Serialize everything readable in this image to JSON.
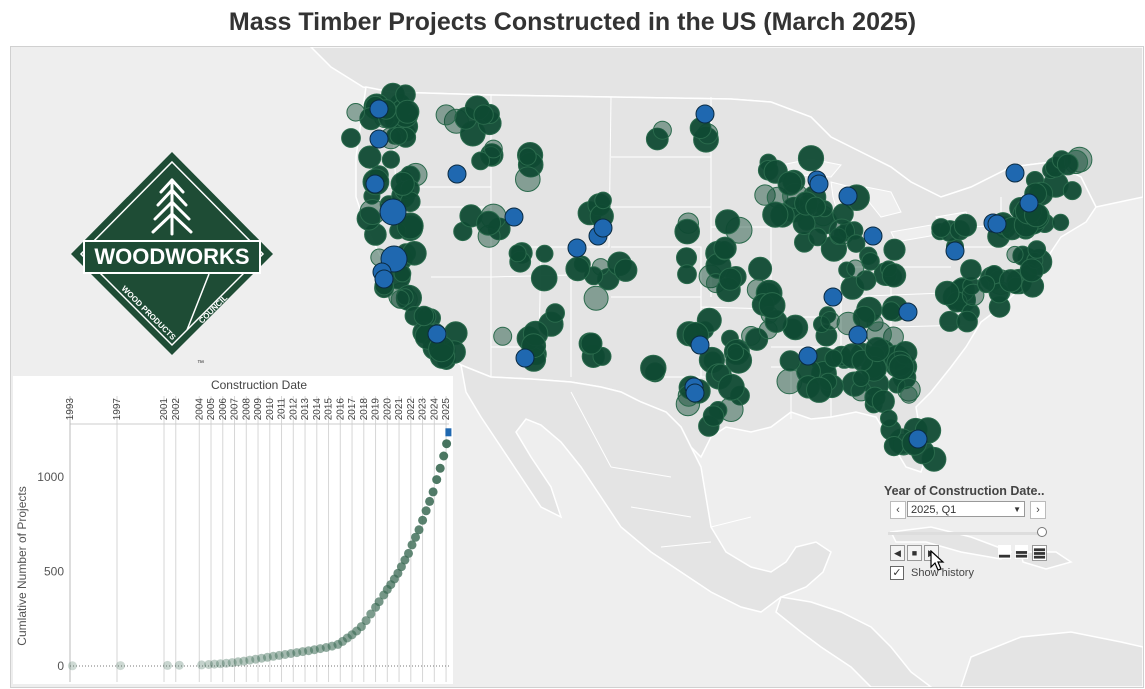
{
  "title": "Mass Timber Projects Constructed in the US (March 2025)",
  "colors": {
    "map_background": "#eeeeee",
    "land": "#e4e4e4",
    "land_border": "#ffffff",
    "project_built": "#0f4a33",
    "project_new": "#1f68b0",
    "logo_green": "#1e4c35"
  },
  "logo": {
    "wordmark": "WOODWORKS",
    "left_banner": "WOOD PRODUCTS",
    "right_banner": "COUNCIL",
    "trademark": "™",
    "icon": "tree-icon"
  },
  "controls": {
    "title": "Year of Construction Date..",
    "selected_period": "2025, Q1",
    "prev_icon": "chevron-left-icon",
    "next_icon": "chevron-right-icon",
    "dropdown_icon": "caret-down-icon",
    "play_icons": [
      "step-back-icon",
      "stop-icon",
      "play-icon"
    ],
    "speed_icons": [
      "speed-slow-icon",
      "speed-medium-icon",
      "speed-fast-icon"
    ],
    "show_history_label": "Show history",
    "show_history_checked": true,
    "check_mark": "✓",
    "slider_position": 1.0
  },
  "chart_data": {
    "type": "scatter",
    "title": "Construction Date",
    "ylabel": "Cumlative Number of Projects",
    "xlabel": "",
    "x_tick_labels": [
      "1993",
      "1997",
      "2001",
      "2002",
      "2004",
      "2005",
      "2006",
      "2007",
      "2008",
      "2009",
      "2010",
      "2011",
      "2012",
      "2013",
      "2014",
      "2015",
      "2016",
      "2017",
      "2018",
      "2019",
      "2020",
      "2021",
      "2022",
      "2023",
      "2024",
      "2025"
    ],
    "x_range": [
      1993,
      2025.25
    ],
    "y_ticks": [
      0,
      500,
      1000
    ],
    "y_tick_labels": [
      "0",
      "500",
      "1000"
    ],
    "ylim": [
      0,
      1300
    ],
    "grid": true,
    "points": [
      {
        "x": 1993.2,
        "y": 1
      },
      {
        "x": 1997.3,
        "y": 2
      },
      {
        "x": 2001.3,
        "y": 3
      },
      {
        "x": 2002.3,
        "y": 4
      },
      {
        "x": 2004.2,
        "y": 6
      },
      {
        "x": 2004.8,
        "y": 8
      },
      {
        "x": 2005.3,
        "y": 10
      },
      {
        "x": 2005.8,
        "y": 12
      },
      {
        "x": 2006.3,
        "y": 15
      },
      {
        "x": 2006.8,
        "y": 18
      },
      {
        "x": 2007.3,
        "y": 22
      },
      {
        "x": 2007.8,
        "y": 26
      },
      {
        "x": 2008.3,
        "y": 31
      },
      {
        "x": 2008.8,
        "y": 36
      },
      {
        "x": 2009.3,
        "y": 41
      },
      {
        "x": 2009.8,
        "y": 46
      },
      {
        "x": 2010.3,
        "y": 51
      },
      {
        "x": 2010.8,
        "y": 56
      },
      {
        "x": 2011.3,
        "y": 61
      },
      {
        "x": 2011.8,
        "y": 66
      },
      {
        "x": 2012.3,
        "y": 71
      },
      {
        "x": 2012.8,
        "y": 76
      },
      {
        "x": 2013.3,
        "y": 81
      },
      {
        "x": 2013.8,
        "y": 86
      },
      {
        "x": 2014.3,
        "y": 92
      },
      {
        "x": 2014.8,
        "y": 98
      },
      {
        "x": 2015.3,
        "y": 105
      },
      {
        "x": 2015.8,
        "y": 114
      },
      {
        "x": 2016.2,
        "y": 130
      },
      {
        "x": 2016.6,
        "y": 148
      },
      {
        "x": 2017.0,
        "y": 165
      },
      {
        "x": 2017.4,
        "y": 185
      },
      {
        "x": 2017.8,
        "y": 208
      },
      {
        "x": 2018.2,
        "y": 240
      },
      {
        "x": 2018.6,
        "y": 275
      },
      {
        "x": 2019.0,
        "y": 310
      },
      {
        "x": 2019.3,
        "y": 340
      },
      {
        "x": 2019.7,
        "y": 375
      },
      {
        "x": 2020.0,
        "y": 405
      },
      {
        "x": 2020.3,
        "y": 430
      },
      {
        "x": 2020.6,
        "y": 460
      },
      {
        "x": 2020.9,
        "y": 490
      },
      {
        "x": 2021.2,
        "y": 525
      },
      {
        "x": 2021.5,
        "y": 560
      },
      {
        "x": 2021.8,
        "y": 595
      },
      {
        "x": 2022.1,
        "y": 640
      },
      {
        "x": 2022.4,
        "y": 680
      },
      {
        "x": 2022.7,
        "y": 720
      },
      {
        "x": 2023.0,
        "y": 770
      },
      {
        "x": 2023.3,
        "y": 820
      },
      {
        "x": 2023.6,
        "y": 870
      },
      {
        "x": 2023.9,
        "y": 920
      },
      {
        "x": 2024.2,
        "y": 985
      },
      {
        "x": 2024.5,
        "y": 1045
      },
      {
        "x": 2024.8,
        "y": 1110
      },
      {
        "x": 2025.05,
        "y": 1175
      }
    ],
    "current_point": {
      "x": 2025.2,
      "y": 1235
    },
    "point_color": "#3c6b55",
    "current_color": "#1f68b0"
  }
}
